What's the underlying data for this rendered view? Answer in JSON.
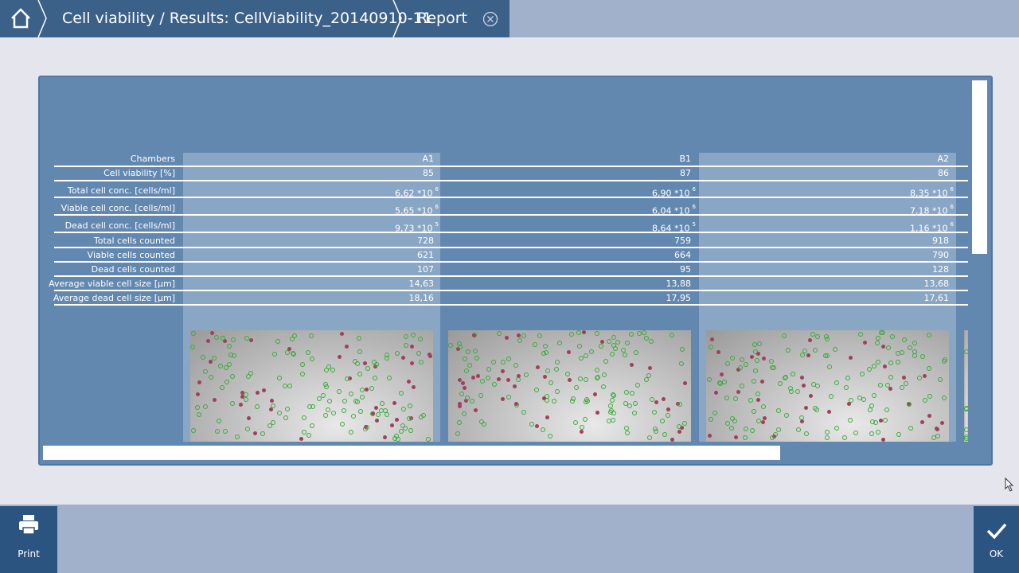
{
  "breadcrumbs": [
    "Cell viability / Results: CellViability_20140910-11",
    "Report"
  ],
  "table": {
    "header": {
      "label": "Chambers",
      "values": [
        "A1",
        "B1",
        "A2"
      ]
    },
    "rows": [
      {
        "label": "Cell viability [%]",
        "values": [
          "85",
          "87",
          "86"
        ]
      },
      {
        "label": "Total cell conc. [cells/ml]",
        "values": [
          {
            "text": "6,62 *10",
            "exp": "6"
          },
          {
            "text": "6,90 *10",
            "exp": "6"
          },
          {
            "text": "8,35 *10",
            "exp": "6"
          }
        ]
      },
      {
        "label": "Viable cell conc. [cells/ml]",
        "values": [
          {
            "text": "5,65 *10",
            "exp": "6"
          },
          {
            "text": "6,04 *10",
            "exp": "6"
          },
          {
            "text": "7,18 *10",
            "exp": "6"
          }
        ]
      },
      {
        "label": "Dead cell conc. [cells/ml]",
        "values": [
          {
            "text": "9,73 *10",
            "exp": "5"
          },
          {
            "text": "8,64 *10",
            "exp": "5"
          },
          {
            "text": "1,16 *10",
            "exp": "6"
          }
        ]
      },
      {
        "label": "Total cells counted",
        "values": [
          "728",
          "759",
          "918"
        ]
      },
      {
        "label": "Viable cells counted",
        "values": [
          "621",
          "664",
          "790"
        ]
      },
      {
        "label": "Dead cells counted",
        "values": [
          "107",
          "95",
          "128"
        ]
      },
      {
        "label": "Average viable cell size [µm]",
        "values": [
          "14,63",
          "13,88",
          "13,68"
        ]
      },
      {
        "label": "Average dead cell size [µm]",
        "values": [
          "18,16",
          "17,95",
          "17,61"
        ]
      }
    ]
  },
  "buttons": {
    "print": "Print",
    "ok": "OK"
  }
}
